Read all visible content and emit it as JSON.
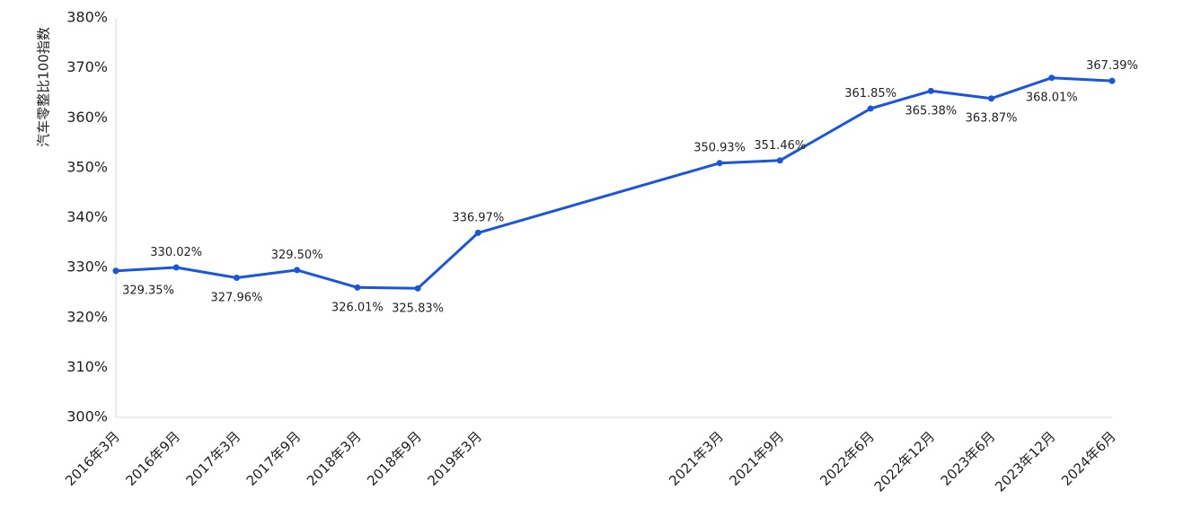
{
  "chart_data": {
    "type": "line",
    "ylabel": "汽车零整比100指数",
    "ylim": [
      3.0,
      3.8
    ],
    "yticks": [
      "300%",
      "310%",
      "320%",
      "330%",
      "340%",
      "350%",
      "360%",
      "370%",
      "380%"
    ],
    "x": [
      2016.25,
      2016.75,
      2017.25,
      2017.75,
      2018.25,
      2018.75,
      2019.25,
      2021.25,
      2021.75,
      2022.5,
      2023.0,
      2023.5,
      2024.0,
      2024.5
    ],
    "categories": [
      "2016年3月",
      "2016年9月",
      "2017年3月",
      "2017年9月",
      "2018年3月",
      "2018年9月",
      "2019年3月",
      "2021年3月",
      "2021年9月",
      "2022年6月",
      "2022年12月",
      "2023年6月",
      "2023年12月",
      "2024年6月"
    ],
    "series": [
      {
        "values": [
          3.2935,
          3.3002,
          3.2796,
          3.295,
          3.2601,
          3.2583,
          3.3697,
          3.5093,
          3.5146,
          3.6185,
          3.6538,
          3.6387,
          3.6801,
          3.6739
        ],
        "labels": [
          "329.35%",
          "330.02%",
          "327.96%",
          "329.50%",
          "326.01%",
          "325.83%",
          "336.97%",
          "350.93%",
          "351.46%",
          "361.85%",
          "365.38%",
          "363.87%",
          "368.01%",
          "367.39%"
        ],
        "color": "#1a56db"
      }
    ],
    "grid": false,
    "legend": "none"
  }
}
